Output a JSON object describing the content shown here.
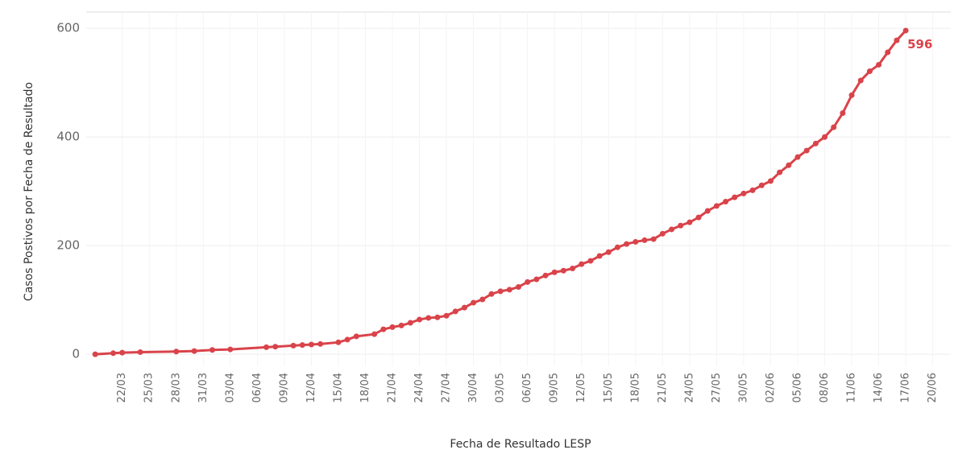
{
  "chart_data": {
    "type": "line",
    "y_label": "Casos Postivos por Fecha de Resultado",
    "x_label": "Fecha de Resultado LESP",
    "color": "#d9434a",
    "x": [
      "19/03",
      "21/03",
      "22/03",
      "24/03",
      "28/03",
      "30/03",
      "01/04",
      "03/04",
      "07/04",
      "08/04",
      "10/04",
      "11/04",
      "12/04",
      "13/04",
      "15/04",
      "16/04",
      "17/04",
      "19/04",
      "20/04",
      "21/04",
      "22/04",
      "23/04",
      "24/04",
      "25/04",
      "26/04",
      "27/04",
      "28/04",
      "29/04",
      "30/04",
      "01/05",
      "02/05",
      "03/05",
      "04/05",
      "05/05",
      "06/05",
      "07/05",
      "08/05",
      "09/05",
      "10/05",
      "11/05",
      "12/05",
      "13/05",
      "14/05",
      "15/05",
      "16/05",
      "17/05",
      "18/05",
      "19/05",
      "20/05",
      "21/05",
      "22/05",
      "23/05",
      "24/05",
      "25/05",
      "26/05",
      "27/05",
      "28/05",
      "29/05",
      "30/05",
      "31/05",
      "01/06",
      "02/06",
      "03/06",
      "04/06",
      "05/06",
      "06/06",
      "07/06",
      "08/06",
      "09/06",
      "10/06",
      "11/06",
      "12/06",
      "13/06",
      "14/06",
      "15/06",
      "16/06",
      "17/06"
    ],
    "values": [
      0,
      2,
      3,
      4,
      5,
      6,
      8,
      9,
      13,
      14,
      16,
      17,
      18,
      19,
      22,
      27,
      33,
      37,
      46,
      50,
      53,
      58,
      64,
      67,
      68,
      71,
      79,
      86,
      95,
      101,
      111,
      116,
      119,
      124,
      133,
      138,
      145,
      151,
      154,
      158,
      166,
      172,
      181,
      188,
      197,
      203,
      207,
      210,
      212,
      222,
      230,
      237,
      243,
      252,
      264,
      273,
      281,
      289,
      296,
      302,
      311,
      319,
      335,
      348,
      363,
      375,
      388,
      400,
      418,
      444,
      477,
      504,
      521,
      533,
      556,
      578,
      596
    ],
    "xlim": [
      "18/03",
      "22/06"
    ],
    "xticks": [
      "22/03",
      "25/03",
      "28/03",
      "31/03",
      "03/04",
      "06/04",
      "09/04",
      "12/04",
      "15/04",
      "18/04",
      "21/04",
      "24/04",
      "27/04",
      "30/04",
      "03/05",
      "06/05",
      "09/05",
      "12/05",
      "15/05",
      "18/05",
      "21/05",
      "24/05",
      "27/05",
      "30/05",
      "02/06",
      "05/06",
      "08/06",
      "11/06",
      "14/06",
      "17/06",
      "20/06"
    ],
    "ylim": [
      -22,
      630
    ],
    "yticks": [
      0,
      200,
      400,
      600
    ],
    "grid": true
  }
}
